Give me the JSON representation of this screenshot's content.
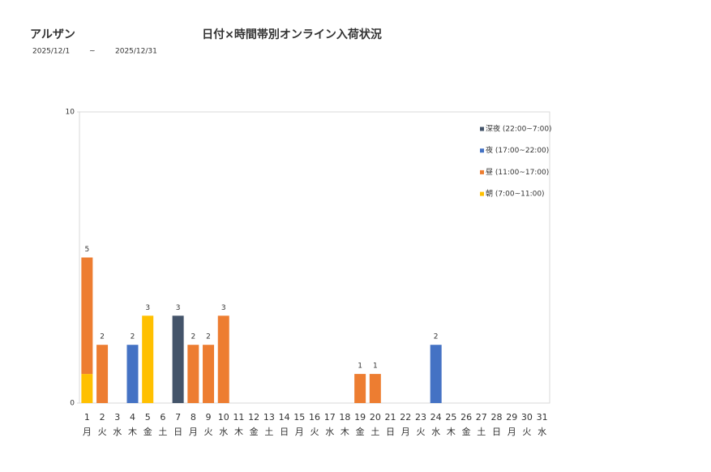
{
  "header": {
    "store": "アルザン",
    "date_from": "2025/12/1",
    "separator": "~",
    "date_to": "2025/12/31"
  },
  "chart_data": {
    "type": "stacked_bar",
    "title": "日付×時間帯別オンライン入荷状況",
    "categories": [
      "1",
      "2",
      "3",
      "4",
      "5",
      "6",
      "7",
      "8",
      "9",
      "10",
      "11",
      "12",
      "13",
      "14",
      "15",
      "16",
      "17",
      "18",
      "19",
      "20",
      "21",
      "22",
      "23",
      "24",
      "25",
      "26",
      "27",
      "28",
      "29",
      "30",
      "31"
    ],
    "category_weekdays": [
      "月",
      "火",
      "水",
      "木",
      "金",
      "土",
      "日",
      "月",
      "火",
      "水",
      "木",
      "金",
      "土",
      "日",
      "月",
      "火",
      "水",
      "木",
      "金",
      "土",
      "日",
      "月",
      "火",
      "水",
      "木",
      "金",
      "土",
      "日",
      "月",
      "火",
      "水"
    ],
    "series": [
      {
        "name": "深夜 (22:00~7:00)",
        "color": "#44546a",
        "values": [
          0,
          0,
          0,
          0,
          0,
          0,
          3,
          0,
          0,
          0,
          0,
          0,
          0,
          0,
          0,
          0,
          0,
          0,
          0,
          0,
          0,
          0,
          0,
          0,
          0,
          0,
          0,
          0,
          0,
          0,
          0
        ]
      },
      {
        "name": "夜 (17:00~22:00)",
        "color": "#4472c4",
        "values": [
          0,
          0,
          0,
          2,
          0,
          0,
          0,
          0,
          0,
          0,
          0,
          0,
          0,
          0,
          0,
          0,
          0,
          0,
          0,
          0,
          0,
          0,
          0,
          2,
          0,
          0,
          0,
          0,
          0,
          0,
          0
        ]
      },
      {
        "name": "昼 (11:00~17:00)",
        "color": "#ed7d31",
        "values": [
          4,
          2,
          0,
          0,
          0,
          0,
          0,
          2,
          2,
          3,
          0,
          0,
          0,
          0,
          0,
          0,
          0,
          0,
          1,
          1,
          0,
          0,
          0,
          0,
          0,
          0,
          0,
          0,
          0,
          0,
          0
        ]
      },
      {
        "name": "朝 (7:00~11:00)",
        "color": "#ffc000",
        "values": [
          1,
          0,
          0,
          0,
          3,
          0,
          0,
          0,
          0,
          0,
          0,
          0,
          0,
          0,
          0,
          0,
          0,
          0,
          0,
          0,
          0,
          0,
          0,
          0,
          0,
          0,
          0,
          0,
          0,
          0,
          0
        ]
      }
    ],
    "totals": [
      5,
      2,
      null,
      2,
      3,
      null,
      3,
      2,
      2,
      3,
      null,
      null,
      null,
      null,
      null,
      null,
      null,
      null,
      1,
      1,
      null,
      null,
      null,
      2,
      null,
      null,
      null,
      null,
      null,
      null,
      null
    ],
    "ylim": [
      0,
      10
    ],
    "yticks": [
      0,
      10
    ],
    "legend": "top-right"
  }
}
